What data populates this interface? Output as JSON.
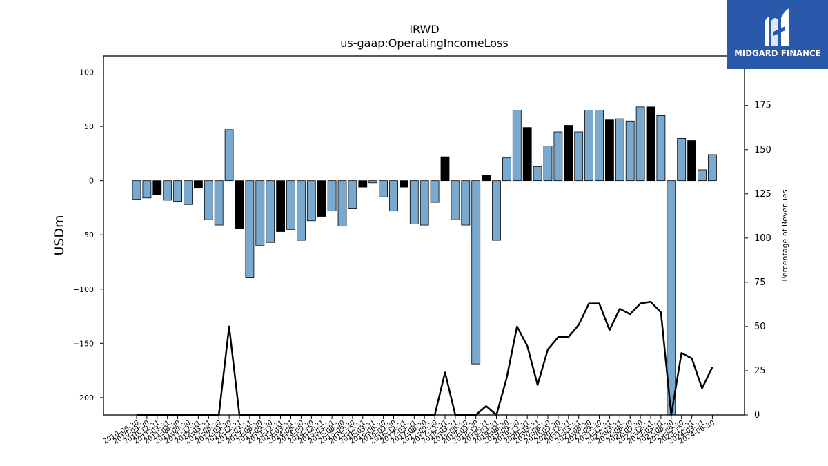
{
  "brand": {
    "name": "MIDGARD FINANCE",
    "bg_color": "#2a59ab",
    "icon": "midgard-logo-icon"
  },
  "chart_data": {
    "type": "bar",
    "title": "IRWD",
    "subtitle": "us-gaap:OperatingIncomeLoss",
    "ylabel": "USDm",
    "y2label": "Percentage of Revenues",
    "ylim": [
      -216,
      115
    ],
    "y2lim": [
      0,
      203
    ],
    "yticks": [
      100,
      50,
      0,
      -50,
      -100,
      -150,
      -200
    ],
    "y2ticks": [
      0,
      25,
      50,
      75,
      100,
      125,
      150,
      175
    ],
    "bar_colors": {
      "quarterly": "#7aa9d0",
      "annual": "#000000"
    },
    "line_color": "#000000",
    "categories": [
      "2010-06-30",
      "2010-09-30",
      "2010-12-31",
      "2011-03-31",
      "2011-06-30",
      "2011-09-30",
      "2011-12-31",
      "2012-03-31",
      "2012-06-30",
      "2012-09-30",
      "2012-12-31",
      "2013-03-31",
      "2013-06-30",
      "2013-09-30",
      "2013-12-31",
      "2014-03-31",
      "2014-06-30",
      "2014-09-30",
      "2014-12-31",
      "2015-03-31",
      "2015-06-30",
      "2015-09-30",
      "2015-12-31",
      "2016-03-31",
      "2016-06-30",
      "2016-09-30",
      "2016-12-31",
      "2017-03-31",
      "2017-06-30",
      "2017-09-30",
      "2017-12-31",
      "2018-03-31",
      "2018-06-30",
      "2018-09-30",
      "2018-12-31",
      "2019-03-31",
      "2019-06-30",
      "2019-09-30",
      "2019-12-31",
      "2020-03-31",
      "2020-06-30",
      "2020-09-30",
      "2020-12-31",
      "2021-03-31",
      "2021-06-30",
      "2021-09-30",
      "2021-12-31",
      "2022-03-31",
      "2022-06-30",
      "2022-09-30",
      "2022-12-31",
      "2023-03-31",
      "2023-06-30",
      "2023-09-30",
      "2023-12-31",
      "2024-03-31",
      "2024-06-30"
    ],
    "values": [
      -17,
      -16,
      -13,
      -18,
      -19,
      -22,
      -7,
      -36,
      -41,
      47,
      -44,
      -89,
      -60,
      -57,
      -47,
      -45,
      -55,
      -37,
      -33,
      -28,
      -42,
      -26,
      -6,
      -2,
      -15,
      -28,
      -6,
      -40,
      -41,
      -20,
      22,
      -36,
      -41,
      -169,
      5,
      -55,
      21,
      65,
      49,
      13,
      32,
      45,
      51,
      45,
      65,
      65,
      56,
      57,
      55,
      68,
      68,
      60,
      -216,
      39,
      37,
      10,
      24
    ],
    "bar_type": [
      "q",
      "q",
      "a",
      "q",
      "q",
      "q",
      "a",
      "q",
      "q",
      "q",
      "a",
      "q",
      "q",
      "q",
      "a",
      "q",
      "q",
      "q",
      "a",
      "q",
      "q",
      "q",
      "a",
      "q",
      "q",
      "q",
      "a",
      "q",
      "q",
      "q",
      "a",
      "q",
      "q",
      "q",
      "a",
      "q",
      "q",
      "q",
      "a",
      "q",
      "q",
      "q",
      "a",
      "q",
      "q",
      "q",
      "a",
      "q",
      "q",
      "q",
      "a",
      "q",
      "q",
      "q",
      "a",
      "q",
      "q"
    ],
    "line_values": [
      0,
      0,
      0,
      0,
      0,
      0,
      0,
      0,
      0,
      50,
      0,
      0,
      0,
      0,
      0,
      0,
      0,
      0,
      0,
      0,
      0,
      0,
      0,
      0,
      0,
      0,
      0,
      0,
      0,
      0,
      24,
      0,
      0,
      0,
      5,
      0,
      21,
      50,
      39,
      17,
      37,
      44,
      44,
      51,
      63,
      63,
      48,
      60,
      57,
      63,
      64,
      58,
      0,
      35,
      32,
      15,
      27
    ]
  }
}
